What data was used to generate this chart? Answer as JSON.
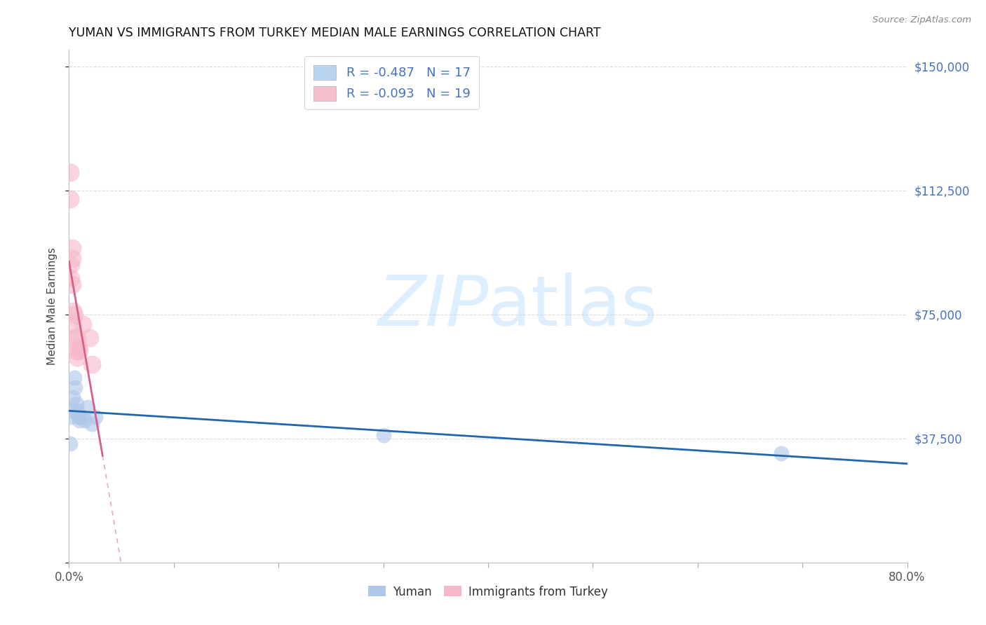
{
  "title": "YUMAN VS IMMIGRANTS FROM TURKEY MEDIAN MALE EARNINGS CORRELATION CHART",
  "source": "Source: ZipAtlas.com",
  "ylabel": "Median Male Earnings",
  "yticks": [
    0,
    37500,
    75000,
    112500,
    150000
  ],
  "yuman_x": [
    0.001,
    0.002,
    0.003,
    0.004,
    0.005,
    0.006,
    0.007,
    0.008,
    0.009,
    0.01,
    0.012,
    0.015,
    0.018,
    0.022,
    0.025,
    0.3,
    0.68
  ],
  "yuman_y": [
    36000,
    44000,
    46000,
    50000,
    56000,
    53000,
    48000,
    46000,
    44000,
    43000,
    44000,
    43000,
    47000,
    42000,
    44000,
    38500,
    33000
  ],
  "turkey_x": [
    0.001,
    0.001,
    0.002,
    0.002,
    0.003,
    0.003,
    0.003,
    0.004,
    0.004,
    0.005,
    0.006,
    0.007,
    0.008,
    0.008,
    0.009,
    0.01,
    0.013,
    0.02,
    0.022
  ],
  "turkey_y": [
    118000,
    110000,
    90000,
    86000,
    95000,
    92000,
    84000,
    76000,
    72000,
    75000,
    68000,
    64000,
    62000,
    68000,
    65000,
    64000,
    72000,
    68000,
    60000
  ],
  "yuman_color": "#aec6e8",
  "turkey_color": "#f5b8c8",
  "yuman_line_color": "#2166ac",
  "turkey_line_color": "#d6608a",
  "background_color": "#ffffff",
  "grid_color": "#cccccc",
  "watermark_color": "#ddeeff",
  "xlim": [
    0.0,
    0.8
  ],
  "ylim": [
    0,
    155000
  ],
  "legend_blue_label": "R = -0.487   N = 17",
  "legend_pink_label": "R = -0.093   N = 19",
  "legend_blue_color": "#b8d4ee",
  "legend_pink_color": "#f5c0cc",
  "bottom_legend_yuman": "Yuman",
  "bottom_legend_turkey": "Immigrants from Turkey"
}
